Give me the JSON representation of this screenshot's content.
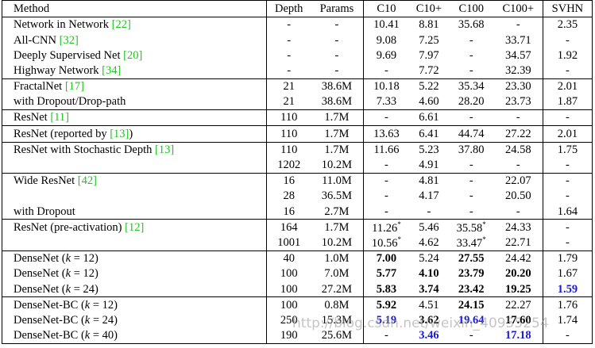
{
  "table": {
    "header": [
      "Method",
      "Depth",
      "Params",
      "C10",
      "C10+",
      "C100",
      "C100+",
      "SVHN"
    ],
    "groups": [
      {
        "rows": [
          [
            [
              {
                "text": "Network in Network "
              },
              {
                "text": "[22]",
                "style": "cite"
              }
            ],
            "-",
            "-",
            "10.41",
            "8.81",
            "35.68",
            "-",
            "2.35"
          ],
          [
            [
              {
                "text": "All-CNN "
              },
              {
                "text": "[32]",
                "style": "cite"
              }
            ],
            "-",
            "-",
            "9.08",
            "7.25",
            "-",
            "33.71",
            "-"
          ],
          [
            [
              {
                "text": "Deeply Supervised Net "
              },
              {
                "text": "[20]",
                "style": "cite"
              }
            ],
            "-",
            "-",
            "9.69",
            "7.97",
            "-",
            "34.57",
            "1.92"
          ],
          [
            [
              {
                "text": "Highway Network "
              },
              {
                "text": "[34]",
                "style": "cite"
              }
            ],
            "-",
            "-",
            "-",
            "7.72",
            "-",
            "32.39",
            "-"
          ]
        ]
      },
      {
        "rows": [
          [
            [
              {
                "text": "FractalNet "
              },
              {
                "text": "[17]",
                "style": "cite"
              }
            ],
            "21",
            "38.6M",
            "10.18",
            "5.22",
            "35.34",
            "23.30",
            "2.01"
          ],
          [
            "with Dropout/Drop-path",
            "21",
            "38.6M",
            "7.33",
            "4.60",
            "28.20",
            "23.73",
            "1.87"
          ]
        ]
      },
      {
        "rows": [
          [
            [
              {
                "text": "ResNet "
              },
              {
                "text": "[11]",
                "style": "cite"
              }
            ],
            "110",
            "1.7M",
            "-",
            "6.61",
            "-",
            "-",
            "-"
          ]
        ]
      },
      {
        "rows": [
          [
            [
              {
                "text": "ResNet (reported by "
              },
              {
                "text": "[13]",
                "style": "cite"
              },
              {
                "text": ")"
              }
            ],
            "110",
            "1.7M",
            "13.63",
            "6.41",
            "44.74",
            "27.22",
            "2.01"
          ]
        ]
      },
      {
        "rows": [
          [
            [
              {
                "text": "ResNet with Stochastic Depth "
              },
              {
                "text": "[13]",
                "style": "cite"
              }
            ],
            "110",
            "1.7M",
            "11.66",
            "5.23",
            "37.80",
            "24.58",
            "1.75"
          ],
          [
            null,
            "1202",
            "10.2M",
            "-",
            "4.91",
            "-",
            "-",
            "-"
          ]
        ]
      },
      {
        "rows": [
          [
            [
              {
                "text": "Wide ResNet "
              },
              {
                "text": "[42]",
                "style": "cite"
              }
            ],
            "16",
            "11.0M",
            "-",
            "4.81",
            "-",
            "22.07",
            "-"
          ],
          [
            null,
            "28",
            "36.5M",
            "-",
            "4.17",
            "-",
            "20.50",
            "-"
          ],
          [
            "with Dropout",
            "16",
            "2.7M",
            "-",
            "-",
            "-",
            "-",
            "1.64"
          ]
        ]
      },
      {
        "rows": [
          [
            [
              {
                "text": "ResNet (pre-activation) "
              },
              {
                "text": "[12]",
                "style": "cite"
              }
            ],
            "164",
            "1.7M",
            [
              {
                "text": "11.26"
              },
              {
                "text": "*",
                "style": "sup"
              }
            ],
            "5.46",
            [
              {
                "text": "35.58"
              },
              {
                "text": "*",
                "style": "sup"
              }
            ],
            "24.33",
            "-"
          ],
          [
            null,
            "1001",
            "10.2M",
            [
              {
                "text": "10.56"
              },
              {
                "text": "*",
                "style": "sup"
              }
            ],
            "4.62",
            [
              {
                "text": "33.47"
              },
              {
                "text": "*",
                "style": "sup"
              }
            ],
            "22.71",
            "-"
          ]
        ]
      },
      {
        "rows": [
          [
            [
              {
                "text": "DenseNet ("
              },
              {
                "text": "k",
                "style": "italic"
              },
              {
                "text": " = 12)"
              }
            ],
            "40",
            "1.0M",
            [
              {
                "text": "7.00",
                "style": "bold"
              }
            ],
            "5.24",
            [
              {
                "text": "27.55",
                "style": "bold"
              }
            ],
            "24.42",
            "1.79"
          ],
          [
            [
              {
                "text": "DenseNet ("
              },
              {
                "text": "k",
                "style": "italic"
              },
              {
                "text": " = 12)"
              }
            ],
            "100",
            "7.0M",
            [
              {
                "text": "5.77",
                "style": "bold"
              }
            ],
            [
              {
                "text": "4.10",
                "style": "bold"
              }
            ],
            [
              {
                "text": "23.79",
                "style": "bold"
              }
            ],
            [
              {
                "text": "20.20",
                "style": "bold"
              }
            ],
            "1.67"
          ],
          [
            [
              {
                "text": "DenseNet ("
              },
              {
                "text": "k",
                "style": "italic"
              },
              {
                "text": " = 24)"
              }
            ],
            "100",
            "27.2M",
            [
              {
                "text": "5.83",
                "style": "bold"
              }
            ],
            [
              {
                "text": "3.74",
                "style": "bold"
              }
            ],
            [
              {
                "text": "23.42",
                "style": "bold"
              }
            ],
            [
              {
                "text": "19.25",
                "style": "bold"
              }
            ],
            [
              {
                "text": "1.59",
                "style": "blue"
              }
            ]
          ]
        ]
      },
      {
        "rows": [
          [
            [
              {
                "text": "DenseNet-BC ("
              },
              {
                "text": "k",
                "style": "italic"
              },
              {
                "text": " = 12)"
              }
            ],
            "100",
            "0.8M",
            [
              {
                "text": "5.92",
                "style": "bold"
              }
            ],
            "4.51",
            [
              {
                "text": "24.15",
                "style": "bold"
              }
            ],
            "22.27",
            "1.76"
          ],
          [
            [
              {
                "text": "DenseNet-BC ("
              },
              {
                "text": "k",
                "style": "italic"
              },
              {
                "text": " = 24)"
              }
            ],
            "250",
            "15.3M",
            [
              {
                "text": "5.19",
                "style": "blue"
              }
            ],
            [
              {
                "text": "3.62",
                "style": "bold"
              }
            ],
            [
              {
                "text": "19.64",
                "style": "blue"
              }
            ],
            [
              {
                "text": "17.60",
                "style": "bold"
              }
            ],
            "1.74"
          ],
          [
            [
              {
                "text": "DenseNet-BC ("
              },
              {
                "text": "k",
                "style": "italic"
              },
              {
                "text": " = 40)"
              }
            ],
            "190",
            "25.6M",
            "-",
            [
              {
                "text": "3.46",
                "style": "blue"
              }
            ],
            "-",
            [
              {
                "text": "17.18",
                "style": "blue"
              }
            ],
            "-"
          ]
        ]
      }
    ]
  },
  "watermark": "http://blog.csdn.net/weixin_40955254"
}
